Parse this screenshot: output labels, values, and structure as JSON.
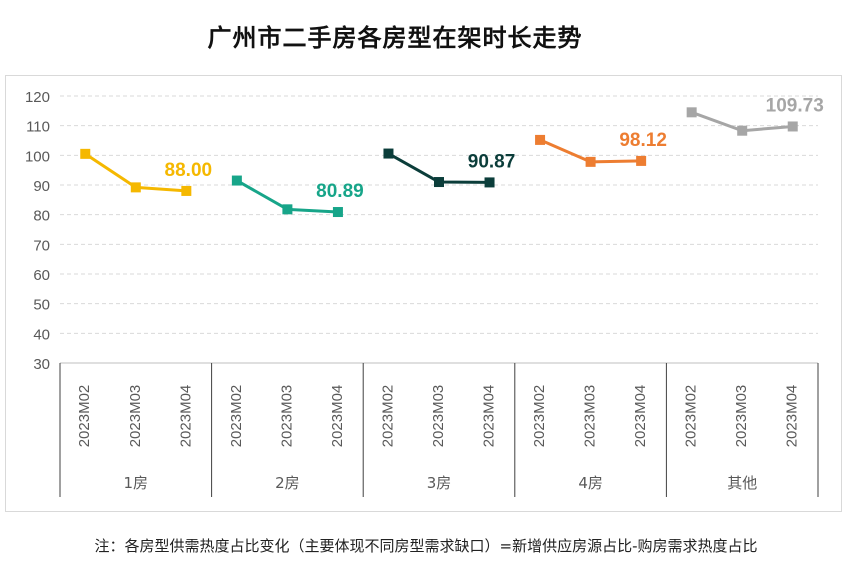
{
  "title": "广州市二手房各房型在架时长走势",
  "note": "注：各房型供需热度占比变化（主要体现不同房型需求缺口）=新增供应房源占比-购房需求热度占比",
  "chart_data": {
    "type": "line",
    "yticks": [
      30,
      40,
      50,
      60,
      70,
      80,
      90,
      100,
      110,
      120
    ],
    "ylim": [
      30,
      120
    ],
    "grid": true,
    "groups": [
      {
        "name": "1房",
        "color": "#F5B800",
        "x": [
          "2023M02",
          "2023M03",
          "2023M04"
        ],
        "values": [
          100.5,
          89.2,
          88.0
        ],
        "label": "88.00"
      },
      {
        "name": "2房",
        "color": "#17A589",
        "x": [
          "2023M02",
          "2023M03",
          "2023M04"
        ],
        "values": [
          91.5,
          81.8,
          80.89
        ],
        "label": "80.89"
      },
      {
        "name": "3房",
        "color": "#0B3D3A",
        "x": [
          "2023M02",
          "2023M03",
          "2023M04"
        ],
        "values": [
          100.6,
          91.0,
          90.87
        ],
        "label": "90.87"
      },
      {
        "name": "4房",
        "color": "#ED7D31",
        "x": [
          "2023M02",
          "2023M03",
          "2023M04"
        ],
        "values": [
          105.2,
          97.8,
          98.12
        ],
        "label": "98.12"
      },
      {
        "name": "其他",
        "color": "#A6A6A6",
        "x": [
          "2023M02",
          "2023M03",
          "2023M04"
        ],
        "values": [
          114.5,
          108.3,
          109.73
        ],
        "label": "109.73"
      }
    ]
  }
}
